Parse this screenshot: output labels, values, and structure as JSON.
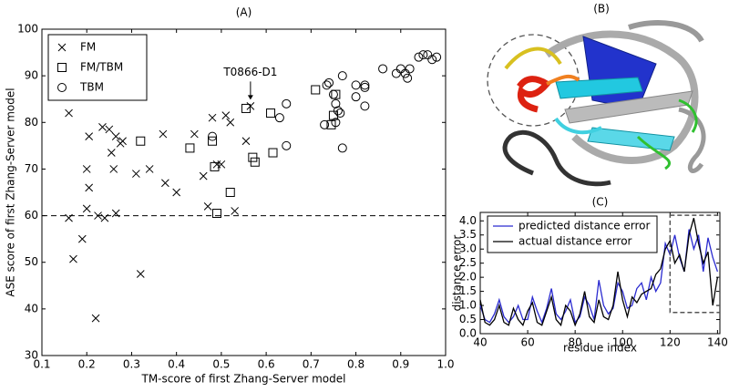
{
  "chart_data": [
    {
      "type": "scatter",
      "title": "(A)",
      "x_label": "TM-score of first Zhang-Server model",
      "y_label": "ASE score of first Zhang-Server model",
      "xlim": [
        0.1,
        1.0
      ],
      "ylim": [
        30,
        100
      ],
      "xticks": [
        0.1,
        0.2,
        0.3,
        0.4,
        0.5,
        0.6,
        0.7,
        0.8,
        0.9,
        {
          "value": 1.0,
          "label": "1.0"
        }
      ],
      "yticks": [
        30,
        40,
        50,
        60,
        70,
        80,
        90,
        100
      ],
      "hline": 60,
      "legend": "upper left",
      "annotation": {
        "text": "T0866-D1",
        "x": 0.565,
        "y": 83.5
      },
      "series": [
        {
          "name": "FM",
          "marker": "x",
          "color": "#000000",
          "x": [
            0.16,
            0.16,
            0.17,
            0.19,
            0.2,
            0.2,
            0.205,
            0.205,
            0.22,
            0.225,
            0.235,
            0.24,
            0.25,
            0.255,
            0.26,
            0.265,
            0.265,
            0.275,
            0.28,
            0.31,
            0.32,
            0.34,
            0.37,
            0.375,
            0.4,
            0.44,
            0.46,
            0.47,
            0.48,
            0.49,
            0.5,
            0.51,
            0.52,
            0.53,
            0.555,
            0.565
          ],
          "values": [
            82,
            59.5,
            50.7,
            55,
            61.5,
            70,
            66,
            77,
            38,
            60,
            79,
            59.5,
            78.5,
            73.5,
            70,
            60.5,
            77,
            75.5,
            76,
            69,
            47.5,
            70,
            77.5,
            67,
            65,
            77.5,
            68.5,
            62,
            81,
            71,
            71,
            81.5,
            80,
            61,
            76,
            83.5
          ]
        },
        {
          "name": "FM/TBM",
          "marker": "s",
          "color": "#000000",
          "x": [
            0.32,
            0.43,
            0.48,
            0.485,
            0.49,
            0.52,
            0.555,
            0.57,
            0.575,
            0.61,
            0.615,
            0.71,
            0.745,
            0.75,
            0.755
          ],
          "values": [
            76,
            74.5,
            76,
            70.5,
            60.5,
            65,
            83,
            72.5,
            71.5,
            82,
            73.5,
            87,
            79.5,
            81.5,
            86
          ]
        },
        {
          "name": "TBM",
          "marker": "o",
          "color": "#000000",
          "x": [
            0.48,
            0.63,
            0.645,
            0.645,
            0.73,
            0.735,
            0.74,
            0.75,
            0.755,
            0.76,
            0.765,
            0.77,
            0.77,
            0.755,
            0.8,
            0.8,
            0.82,
            0.82,
            0.82,
            0.86,
            0.89,
            0.9,
            0.91,
            0.915,
            0.92,
            0.94,
            0.95,
            0.96,
            0.97,
            0.98
          ],
          "values": [
            77,
            81,
            84,
            75,
            79.5,
            88,
            88.5,
            86,
            84,
            82.5,
            82,
            90,
            74.5,
            80,
            85.5,
            88,
            87.5,
            83.5,
            88,
            91.5,
            90.5,
            91.5,
            90.5,
            89.5,
            91.5,
            94,
            94.5,
            94.5,
            93.5,
            94
          ]
        }
      ]
    },
    {
      "type": "line",
      "title": "(C)",
      "x_label": "residue index",
      "y_label": "distance error",
      "xlim": [
        40,
        141
      ],
      "ylim": [
        0,
        4.3
      ],
      "xticks": [
        40,
        60,
        80,
        100,
        120,
        140
      ],
      "yticks": [
        {
          "value": 0,
          "label": "0.0"
        },
        0.5,
        {
          "value": 1,
          "label": "1.0"
        },
        1.5,
        {
          "value": 2,
          "label": "2.0"
        },
        2.5,
        {
          "value": 3,
          "label": "3.0"
        },
        3.5,
        {
          "value": 4,
          "label": "4.0"
        }
      ],
      "legend": "upper left",
      "highlight": {
        "x": [
          120,
          141
        ],
        "y": [
          0.75,
          4.2
        ]
      },
      "x": [
        40,
        42,
        44,
        46,
        48,
        50,
        52,
        54,
        56,
        58,
        60,
        62,
        64,
        66,
        68,
        70,
        72,
        74,
        76,
        78,
        80,
        82,
        84,
        86,
        88,
        90,
        92,
        94,
        96,
        98,
        100,
        102,
        104,
        106,
        108,
        110,
        112,
        114,
        116,
        118,
        120,
        122,
        124,
        126,
        128,
        130,
        132,
        134,
        136,
        138,
        140
      ],
      "series": [
        {
          "name": "predicted distance error",
          "color": "#2a2ad0",
          "values": [
            1.0,
            0.5,
            0.4,
            0.7,
            1.2,
            0.6,
            0.4,
            0.6,
            1.0,
            0.5,
            0.5,
            1.3,
            0.8,
            0.4,
            0.9,
            1.6,
            0.7,
            0.5,
            0.8,
            1.2,
            0.4,
            0.6,
            1.3,
            1.0,
            0.5,
            1.9,
            1.0,
            0.7,
            0.9,
            1.8,
            1.5,
            0.9,
            1.0,
            1.6,
            1.8,
            1.2,
            2.0,
            1.5,
            1.8,
            3.2,
            2.8,
            3.5,
            2.7,
            2.2,
            3.7,
            3.0,
            3.5,
            2.2,
            3.4,
            2.7,
            2.2
          ]
        },
        {
          "name": "actual distance error",
          "color": "#000000",
          "values": [
            1.2,
            0.4,
            0.3,
            0.5,
            1.0,
            0.4,
            0.3,
            0.9,
            0.5,
            0.3,
            0.8,
            1.1,
            0.4,
            0.3,
            0.8,
            1.3,
            0.5,
            0.3,
            1.0,
            0.8,
            0.3,
            0.7,
            1.5,
            0.6,
            0.4,
            1.2,
            0.6,
            0.5,
            1.0,
            2.2,
            1.2,
            0.6,
            1.3,
            1.1,
            1.4,
            1.5,
            1.6,
            2.1,
            2.3,
            3.0,
            3.3,
            2.5,
            2.8,
            2.2,
            3.5,
            4.1,
            3.2,
            2.5,
            2.9,
            1.0,
            2.0
          ]
        }
      ]
    }
  ],
  "panel_b": {
    "label": "(B)"
  }
}
